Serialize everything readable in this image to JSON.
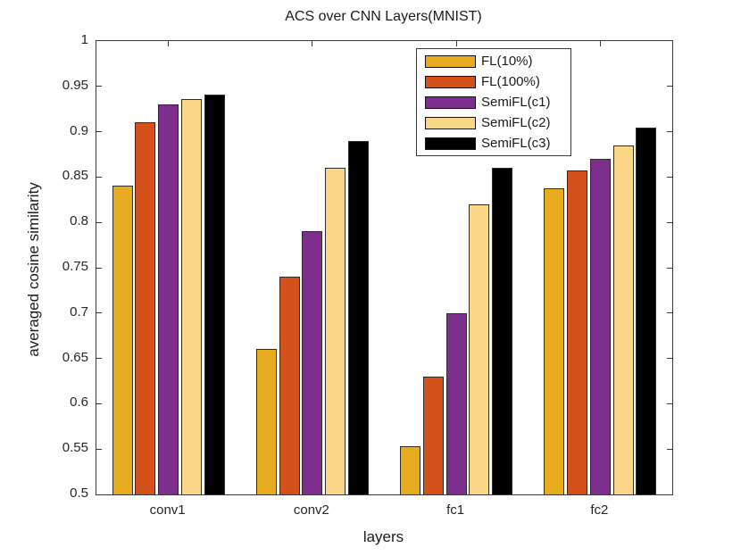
{
  "chart_data": {
    "type": "bar",
    "title": "ACS over CNN Layers(MNIST)",
    "xlabel": "layers",
    "ylabel": "averaged cosine similarity",
    "categories": [
      "conv1",
      "conv2",
      "fc1",
      "fc2"
    ],
    "series": [
      {
        "name": "FL(10%)",
        "color": "#E7AB20",
        "values": [
          0.841,
          0.66,
          0.553,
          0.838
        ]
      },
      {
        "name": "FL(100%)",
        "color": "#D4511B",
        "values": [
          0.91,
          0.74,
          0.63,
          0.857
        ]
      },
      {
        "name": "SemiFL(c1)",
        "color": "#7E2F8E",
        "values": [
          0.93,
          0.79,
          0.7,
          0.87
        ]
      },
      {
        "name": "SemiFL(c2)",
        "color": "#FAD687",
        "values": [
          0.936,
          0.86,
          0.82,
          0.885
        ]
      },
      {
        "name": "SemiFL(c3)",
        "color": "#000000",
        "values": [
          0.941,
          0.89,
          0.86,
          0.905
        ]
      }
    ],
    "ylim": [
      0.5,
      1.0
    ],
    "ytick_step": 0.05,
    "ytick_labels": [
      "0.5",
      "0.55",
      "0.6",
      "0.65",
      "0.7",
      "0.75",
      "0.8",
      "0.85",
      "0.9",
      "0.95",
      "1"
    ],
    "grid": false,
    "legend_position": "top-right",
    "bar_edge_color": "#2b2b2b",
    "axis_color": "#383838"
  }
}
